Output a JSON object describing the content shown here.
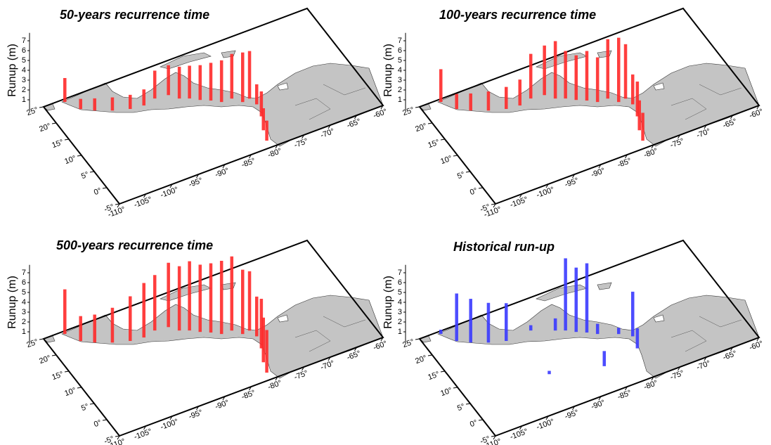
{
  "chart_data": [
    {
      "type": "bar3d",
      "title": "50-years recurrence time",
      "zlabel": "Runup (m)",
      "color": "#ff2a2a",
      "x": [
        -106.3,
        -104.8,
        -102.9,
        -100.3,
        -97.5,
        -95.1,
        -92.7,
        -90.3,
        -89.1,
        -87.6,
        -86.2,
        -84.7,
        -83.3,
        -81.4,
        -80.2,
        -78.8,
        -78.4,
        -79.1,
        -80.4,
        -81.1
      ],
      "y": [
        24.3,
        21.2,
        19.6,
        18.0,
        16.8,
        16.4,
        17.1,
        16.7,
        14.9,
        14.0,
        12.7,
        11.6,
        10.3,
        10.2,
        8.4,
        8.6,
        6.6,
        3.3,
        -0.2,
        -3.0
      ],
      "values": [
        2.4,
        1.0,
        1.2,
        1.3,
        1.4,
        1.6,
        2.8,
        3.0,
        3.2,
        3.3,
        3.5,
        3.8,
        4.2,
        4.5,
        5.0,
        4.8,
        2.0,
        2.5,
        2.2,
        2.0
      ],
      "xlim": [
        -110,
        -60
      ],
      "ylim": [
        -5,
        25
      ],
      "zlim": [
        0,
        7.8
      ],
      "xticks": [
        {
          "value": -110,
          "label": "-110°"
        },
        {
          "value": -105,
          "label": "-105°"
        },
        {
          "value": -100,
          "label": "-100°"
        },
        {
          "value": -95,
          "label": "-95°"
        },
        {
          "value": -90,
          "label": "-90°"
        },
        {
          "value": -85,
          "label": "-85°"
        },
        {
          "value": -80,
          "label": "-80°"
        },
        {
          "value": -75,
          "label": "-75°"
        },
        {
          "value": -70,
          "label": "-70°"
        },
        {
          "value": -65,
          "label": "-65°"
        },
        {
          "value": -60,
          "label": "-60°"
        }
      ],
      "yticks": [
        {
          "value": -5,
          "label": "-5°"
        },
        {
          "value": 0,
          "label": "0°"
        },
        {
          "value": 5,
          "label": "5°"
        },
        {
          "value": 10,
          "label": "10°"
        },
        {
          "value": 15,
          "label": "15°"
        },
        {
          "value": 20,
          "label": "20°"
        },
        {
          "value": 25,
          "label": "25°"
        }
      ],
      "zticks": [
        1,
        2,
        3,
        4,
        5,
        6,
        7
      ]
    },
    {
      "type": "bar3d",
      "title": "100-years recurrence time",
      "zlabel": "Runup (m)",
      "color": "#ff2a2a",
      "x": [
        -106.3,
        -104.8,
        -102.9,
        -100.3,
        -97.5,
        -95.1,
        -92.7,
        -90.3,
        -89.1,
        -87.6,
        -86.2,
        -84.7,
        -83.3,
        -81.4,
        -80.2,
        -78.8,
        -78.4,
        -79.1,
        -80.4,
        -81.1
      ],
      "y": [
        24.3,
        21.2,
        19.6,
        18.0,
        16.8,
        16.4,
        17.1,
        16.7,
        14.9,
        14.0,
        12.7,
        11.6,
        10.3,
        10.2,
        8.4,
        8.6,
        6.6,
        3.3,
        -0.2,
        -3.0
      ],
      "values": [
        3.3,
        1.5,
        1.7,
        1.9,
        2.2,
        2.6,
        4.5,
        5.0,
        5.8,
        4.8,
        4.5,
        5.0,
        4.5,
        6.0,
        6.5,
        5.5,
        3.0,
        3.5,
        3.0,
        2.8
      ],
      "xlim": [
        -110,
        -60
      ],
      "ylim": [
        -5,
        25
      ],
      "zlim": [
        0,
        7.8
      ],
      "xticks": [
        {
          "value": -110,
          "label": "-110°"
        },
        {
          "value": -105,
          "label": "-105°"
        },
        {
          "value": -100,
          "label": "-100°"
        },
        {
          "value": -95,
          "label": "-95°"
        },
        {
          "value": -90,
          "label": "-90°"
        },
        {
          "value": -85,
          "label": "-85°"
        },
        {
          "value": -80,
          "label": "-80°"
        },
        {
          "value": -75,
          "label": "-75°"
        },
        {
          "value": -70,
          "label": "-70°"
        },
        {
          "value": -65,
          "label": "-65°"
        },
        {
          "value": -60,
          "label": "-60°"
        }
      ],
      "yticks": [
        {
          "value": -5,
          "label": "-5°"
        },
        {
          "value": 0,
          "label": "0°"
        },
        {
          "value": 5,
          "label": "5°"
        },
        {
          "value": 10,
          "label": "10°"
        },
        {
          "value": 15,
          "label": "15°"
        },
        {
          "value": 20,
          "label": "20°"
        },
        {
          "value": 25,
          "label": "25°"
        }
      ],
      "zticks": [
        1,
        2,
        3,
        4,
        5,
        6,
        7
      ]
    },
    {
      "type": "bar3d",
      "title": "500-years recurrence time",
      "zlabel": "Runup (m)",
      "color": "#ff2a2a",
      "x": [
        -106.3,
        -104.8,
        -102.9,
        -100.3,
        -97.5,
        -95.1,
        -92.7,
        -90.3,
        -89.1,
        -87.6,
        -86.2,
        -84.7,
        -83.3,
        -81.4,
        -80.2,
        -78.8,
        -78.4,
        -79.1,
        -80.4,
        -81.1
      ],
      "y": [
        24.3,
        21.2,
        19.6,
        18.0,
        16.8,
        16.4,
        17.1,
        16.7,
        14.9,
        14.0,
        12.7,
        11.6,
        10.3,
        10.2,
        8.4,
        8.6,
        6.6,
        3.3,
        -0.2,
        -3.0
      ],
      "values": [
        4.5,
        2.5,
        2.8,
        3.5,
        4.5,
        5.5,
        5.6,
        6.5,
        6.5,
        7.0,
        6.8,
        7.0,
        7.4,
        7.5,
        6.5,
        6.0,
        4.0,
        5.0,
        4.5,
        4.3
      ],
      "xlim": [
        -110,
        -60
      ],
      "ylim": [
        -5,
        25
      ],
      "zlim": [
        0,
        7.8
      ],
      "xticks": [
        {
          "value": -110,
          "label": "-110°"
        },
        {
          "value": -105,
          "label": "-105°"
        },
        {
          "value": -100,
          "label": "-100°"
        },
        {
          "value": -95,
          "label": "-95°"
        },
        {
          "value": -90,
          "label": "-90°"
        },
        {
          "value": -85,
          "label": "-85°"
        },
        {
          "value": -80,
          "label": "-80°"
        },
        {
          "value": -75,
          "label": "-75°"
        },
        {
          "value": -70,
          "label": "-70°"
        },
        {
          "value": -65,
          "label": "-65°"
        },
        {
          "value": -60,
          "label": "-60°"
        }
      ],
      "yticks": [
        {
          "value": -5,
          "label": "-5°"
        },
        {
          "value": 0,
          "label": "0°"
        },
        {
          "value": 5,
          "label": "5°"
        },
        {
          "value": 10,
          "label": "10°"
        },
        {
          "value": 15,
          "label": "15°"
        },
        {
          "value": 20,
          "label": "20°"
        },
        {
          "value": 25,
          "label": "25°"
        }
      ],
      "zticks": [
        1,
        2,
        3,
        4,
        5,
        6,
        7
      ]
    },
    {
      "type": "bar3d",
      "title": "Historical run-up",
      "zlabel": "Runup (m)",
      "color": "#3a3aff",
      "x": [
        -106.3,
        -104.8,
        -102.9,
        -100.3,
        -97.5,
        -92.7,
        -89.1,
        -87.6,
        -86.2,
        -84.7,
        -83.3,
        -80.2,
        -78.4,
        -79.1,
        -95.0,
        -86.0
      ],
      "y": [
        24.3,
        21.2,
        19.6,
        18.0,
        16.8,
        17.1,
        14.9,
        14.0,
        12.7,
        11.6,
        10.3,
        8.4,
        6.6,
        3.3,
        5.0,
        2.0
      ],
      "values": [
        0.4,
        4.8,
        4.4,
        4.0,
        3.8,
        0.5,
        1.2,
        7.3,
        6.5,
        7.0,
        1.0,
        0.6,
        4.5,
        2.0,
        0.3,
        1.5
      ],
      "xlim": [
        -110,
        -60
      ],
      "ylim": [
        -5,
        25
      ],
      "zlim": [
        0,
        7.8
      ],
      "xticks": [
        {
          "value": -110,
          "label": "-110°"
        },
        {
          "value": -105,
          "label": "-105°"
        },
        {
          "value": -100,
          "label": "-100°"
        },
        {
          "value": -95,
          "label": "-95°"
        },
        {
          "value": -90,
          "label": "-90°"
        },
        {
          "value": -85,
          "label": "-85°"
        },
        {
          "value": -80,
          "label": "-80°"
        },
        {
          "value": -75,
          "label": "-75°"
        },
        {
          "value": -70,
          "label": "-70°"
        },
        {
          "value": -65,
          "label": "-65°"
        },
        {
          "value": -60,
          "label": "-60°"
        }
      ],
      "yticks": [
        {
          "value": -5,
          "label": "-5°"
        },
        {
          "value": 0,
          "label": "0°"
        },
        {
          "value": 5,
          "label": "5°"
        },
        {
          "value": 10,
          "label": "10°"
        },
        {
          "value": 15,
          "label": "15°"
        },
        {
          "value": 20,
          "label": "20°"
        },
        {
          "value": 25,
          "label": "25°"
        }
      ],
      "zticks": [
        1,
        2,
        3,
        4,
        5,
        6,
        7
      ]
    }
  ]
}
